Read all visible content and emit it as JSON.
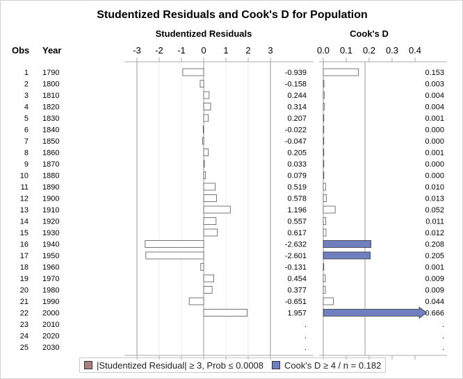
{
  "chart_data": {
    "type": "bar",
    "title": "Studentized Residuals and Cook's D for Population",
    "column_headers": {
      "obs": "Obs",
      "year": "Year"
    },
    "panels": [
      {
        "name": "Studentized Residuals",
        "xlim": [
          -3.5,
          3.5
        ],
        "ticks": [
          "-3",
          "-2",
          "-1",
          "0",
          "1",
          "2",
          "3"
        ],
        "tick_values": [
          -3,
          -2,
          -1,
          0,
          1,
          2,
          3
        ],
        "reference_lines": [
          -3,
          0,
          3
        ]
      },
      {
        "name": "Cook's D",
        "xlim": [
          0,
          0.53
        ],
        "ticks": [
          "0.0",
          "0.1",
          "0.2",
          "0.3",
          "0.4"
        ],
        "tick_values": [
          0,
          0.1,
          0.2,
          0.3,
          0.4
        ],
        "reference_lines": [
          0,
          0.182
        ]
      }
    ],
    "rows": [
      {
        "obs": "1",
        "year": "1790",
        "rstudent": -0.939,
        "rlabel": "-0.939",
        "cooksd": 0.153,
        "clabel": "0.153"
      },
      {
        "obs": "2",
        "year": "1800",
        "rstudent": -0.158,
        "rlabel": "-0.158",
        "cooksd": 0.003,
        "clabel": "0.003"
      },
      {
        "obs": "3",
        "year": "1810",
        "rstudent": 0.244,
        "rlabel": "0.244",
        "cooksd": 0.004,
        "clabel": "0.004"
      },
      {
        "obs": "4",
        "year": "1820",
        "rstudent": 0.314,
        "rlabel": "0.314",
        "cooksd": 0.004,
        "clabel": "0.004"
      },
      {
        "obs": "5",
        "year": "1830",
        "rstudent": 0.207,
        "rlabel": "0.207",
        "cooksd": 0.001,
        "clabel": "0.001"
      },
      {
        "obs": "6",
        "year": "1840",
        "rstudent": -0.022,
        "rlabel": "-0.022",
        "cooksd": 0.0,
        "clabel": "0.000"
      },
      {
        "obs": "7",
        "year": "1850",
        "rstudent": -0.047,
        "rlabel": "-0.047",
        "cooksd": 0.0,
        "clabel": "0.000"
      },
      {
        "obs": "8",
        "year": "1860",
        "rstudent": 0.205,
        "rlabel": "0.205",
        "cooksd": 0.001,
        "clabel": "0.001"
      },
      {
        "obs": "9",
        "year": "1870",
        "rstudent": 0.033,
        "rlabel": "0.033",
        "cooksd": 0.0,
        "clabel": "0.000"
      },
      {
        "obs": "10",
        "year": "1880",
        "rstudent": 0.079,
        "rlabel": "0.079",
        "cooksd": 0.0,
        "clabel": "0.000"
      },
      {
        "obs": "11",
        "year": "1890",
        "rstudent": 0.519,
        "rlabel": "0.519",
        "cooksd": 0.01,
        "clabel": "0.010"
      },
      {
        "obs": "12",
        "year": "1900",
        "rstudent": 0.578,
        "rlabel": "0.578",
        "cooksd": 0.013,
        "clabel": "0.013"
      },
      {
        "obs": "13",
        "year": "1910",
        "rstudent": 1.196,
        "rlabel": "1.196",
        "cooksd": 0.052,
        "clabel": "0.052"
      },
      {
        "obs": "14",
        "year": "1920",
        "rstudent": 0.557,
        "rlabel": "0.557",
        "cooksd": 0.011,
        "clabel": "0.011"
      },
      {
        "obs": "15",
        "year": "1930",
        "rstudent": 0.617,
        "rlabel": "0.617",
        "cooksd": 0.012,
        "clabel": "0.012"
      },
      {
        "obs": "16",
        "year": "1940",
        "rstudent": -2.632,
        "rlabel": "-2.632",
        "cooksd": 0.208,
        "clabel": "0.208"
      },
      {
        "obs": "17",
        "year": "1950",
        "rstudent": -2.601,
        "rlabel": "-2.601",
        "cooksd": 0.205,
        "clabel": "0.205"
      },
      {
        "obs": "18",
        "year": "1960",
        "rstudent": -0.131,
        "rlabel": "-0.131",
        "cooksd": 0.001,
        "clabel": "0.001"
      },
      {
        "obs": "19",
        "year": "1970",
        "rstudent": 0.454,
        "rlabel": "0.454",
        "cooksd": 0.009,
        "clabel": "0.009"
      },
      {
        "obs": "20",
        "year": "1980",
        "rstudent": 0.377,
        "rlabel": "0.377",
        "cooksd": 0.009,
        "clabel": "0.009"
      },
      {
        "obs": "21",
        "year": "1990",
        "rstudent": -0.651,
        "rlabel": "-0.651",
        "cooksd": 0.044,
        "clabel": "0.044"
      },
      {
        "obs": "22",
        "year": "2000",
        "rstudent": 1.957,
        "rlabel": "1.957",
        "cooksd": 0.666,
        "clabel": "0.666"
      },
      {
        "obs": "23",
        "year": "2010",
        "rstudent": null,
        "rlabel": ".",
        "cooksd": null,
        "clabel": "."
      },
      {
        "obs": "24",
        "year": "2020",
        "rstudent": null,
        "rlabel": ".",
        "cooksd": null,
        "clabel": "."
      },
      {
        "obs": "25",
        "year": "2030",
        "rstudent": null,
        "rlabel": ".",
        "cooksd": null,
        "clabel": "."
      }
    ],
    "legend": {
      "placement": "bottom",
      "entries": [
        {
          "label": "|Studentized Residual| ≥ 3, Prob ≤ 0.0008",
          "color": "#a88080"
        },
        {
          "label": "Cook's D ≥ 4 / n = 0.182",
          "color": "#6f7fbf"
        }
      ]
    },
    "colors": {
      "bar_fill": "#ffffff",
      "bar_stroke": "#555555",
      "influential_fill": "#6f7fbf",
      "outlier_fill": "#a88080"
    }
  }
}
